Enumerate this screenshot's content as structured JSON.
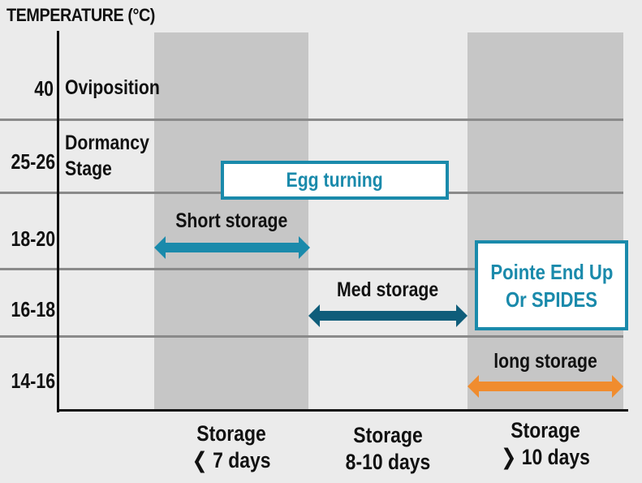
{
  "axis_title": "TEMPERATURE (°C)",
  "y_ticks": [
    "40",
    "25-26",
    "18-20",
    "16-18",
    "14-16"
  ],
  "stages": {
    "oviposition": "Oviposition",
    "dormancy_line1": "Dormancy",
    "dormancy_line2": "Stage"
  },
  "boxes": {
    "egg_turning": "Egg turning",
    "pointe_line1": "Pointe End Up",
    "pointe_line2": "Or SPIDES"
  },
  "arrows": {
    "short": {
      "label": "Short storage",
      "color": "#1a8aab"
    },
    "med": {
      "label": "Med storage",
      "color": "#0f5d7a"
    },
    "long": {
      "label": "long storage",
      "color": "#f08c2e"
    }
  },
  "x_labels": [
    {
      "line1": "Storage",
      "line2": "❮ 7 days"
    },
    {
      "line1": "Storage",
      "line2": "8-10 days"
    },
    {
      "line1": "Storage",
      "line2": "❯ 10 days"
    }
  ],
  "colors": {
    "box_border": "#1a8aab",
    "band": "#c6c6c6",
    "background": "#ebebeb"
  }
}
